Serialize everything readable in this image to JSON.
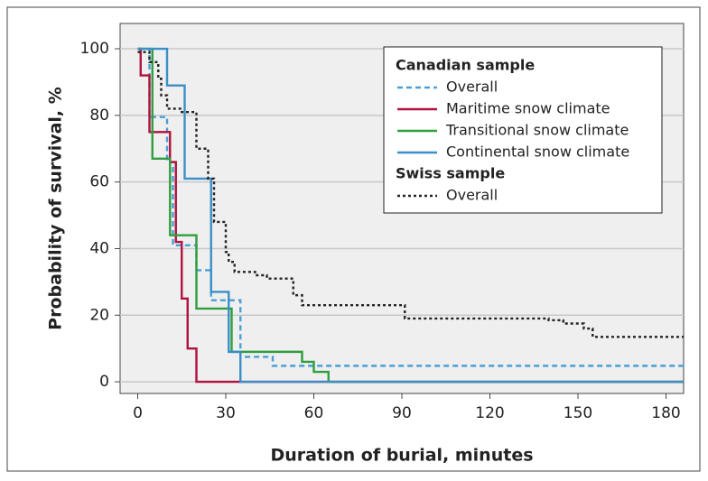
{
  "chart_data": {
    "type": "step-line",
    "x_label": "Duration of burial, minutes",
    "y_label": "Probability of survival, %",
    "xlim": [
      -6,
      186
    ],
    "ylim": [
      -3.5,
      107.6
    ],
    "xticks": [
      0,
      30,
      60,
      90,
      120,
      150,
      180
    ],
    "yticks": [
      0,
      20,
      40,
      60,
      80,
      100
    ],
    "grid": true,
    "groups": [
      {
        "name": "Canadian sample",
        "series": [
          {
            "name": "Overall",
            "color": "#4a9fd4",
            "dash": "dashed",
            "x": [
              0,
              4,
              10,
              12,
              20,
              25,
              35,
              46,
              186
            ],
            "values": [
              100,
              79.5,
              66,
              41,
              33.5,
              24.5,
              7.5,
              4.8,
              4.8
            ]
          },
          {
            "name": "Maritime snow climate",
            "color": "#b0123d",
            "dash": "solid",
            "x": [
              0,
              1,
              4,
              11,
              13,
              15,
              17,
              20,
              186
            ],
            "values": [
              100,
              92,
              75,
              66,
              42,
              25,
              10,
              0,
              0
            ]
          },
          {
            "name": "Transitional snow climate",
            "color": "#2e9e3e",
            "dash": "solid",
            "x": [
              0,
              5,
              11,
              20,
              32,
              56,
              60,
              65,
              186
            ],
            "values": [
              100,
              67,
              44,
              22,
              9,
              6,
              3,
              0,
              0
            ]
          },
          {
            "name": "Continental snow climate",
            "color": "#3a8fc8",
            "dash": "solid",
            "x": [
              0,
              10,
              16,
              25,
              31,
              35,
              186
            ],
            "values": [
              100,
              89,
              61,
              27,
              9,
              0,
              0
            ]
          }
        ]
      },
      {
        "name": "Swiss sample",
        "series": [
          {
            "name": "Overall",
            "color": "#222222",
            "dash": "dotted",
            "x": [
              0,
              4,
              7,
              8,
              10,
              15,
              20,
              24,
              26,
              30,
              31,
              33,
              40,
              44,
              53,
              56,
              91,
              140,
              145,
              152,
              155,
              186
            ],
            "values": [
              99,
              96,
              91,
              86,
              82,
              81,
              70,
              61,
              48,
              39,
              36,
              33,
              32,
              31,
              26,
              23,
              19,
              18.5,
              17.5,
              16,
              13.5,
              13.5
            ]
          }
        ]
      }
    ]
  }
}
